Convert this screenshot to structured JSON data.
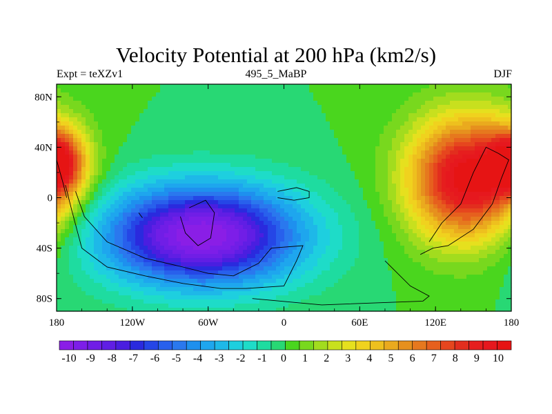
{
  "chart_data": {
    "type": "heatmap",
    "title": "Velocity Potential at 200 hPa (km2/s)",
    "subtitle_left": "Expt = teXZv1",
    "subtitle_center": "495_5_MaBP",
    "subtitle_right": "DJF",
    "x_ticks": [
      {
        "value": -180,
        "label": "180"
      },
      {
        "value": -120,
        "label": "120W"
      },
      {
        "value": -60,
        "label": "60W"
      },
      {
        "value": 0,
        "label": "0"
      },
      {
        "value": 60,
        "label": "60E"
      },
      {
        "value": 120,
        "label": "120E"
      },
      {
        "value": 180,
        "label": "180"
      }
    ],
    "y_ticks": [
      {
        "value": 80,
        "label": "80N"
      },
      {
        "value": 40,
        "label": "40N"
      },
      {
        "value": 0,
        "label": "0"
      },
      {
        "value": -40,
        "label": "40S"
      },
      {
        "value": -80,
        "label": "80S"
      }
    ],
    "xlim": [
      -180,
      180
    ],
    "ylim": [
      -90,
      90
    ],
    "colorbar": {
      "labels": [
        "-10",
        "-9",
        "-8",
        "-7",
        "-6",
        "-5",
        "-4",
        "-3",
        "-2",
        "-1",
        "0",
        "1",
        "2",
        "3",
        "4",
        "5",
        "6",
        "7",
        "8",
        "9",
        "10"
      ],
      "colors": [
        "#8a1ee6",
        "#7d1ee8",
        "#701ee6",
        "#601ee4",
        "#4a1ee0",
        "#2a2ade",
        "#2546e6",
        "#2860ec",
        "#2a78ee",
        "#1e90ee",
        "#1ea6ee",
        "#1eb8e8",
        "#1ecfdf",
        "#1edcc8",
        "#1edca0",
        "#28d874",
        "#4ad61e",
        "#78d81e",
        "#a2dc1e",
        "#c8e01e",
        "#e6e01e",
        "#f0d21e",
        "#eec01e",
        "#eaaa1e",
        "#e6901e",
        "#e6781e",
        "#e6601e",
        "#e6461e",
        "#e22e1e",
        "#e61e1e",
        "#e6181e",
        "#e61414"
      ]
    },
    "field_centers": [
      {
        "lon": -65,
        "lat": -30,
        "amplitude": -11,
        "lon_scale": 55,
        "lat_scale": 28
      },
      {
        "lon": 145,
        "lat": 15,
        "amplitude": 11,
        "lon_scale": 32,
        "lat_scale": 34
      },
      {
        "lon": -178,
        "lat": 28,
        "amplitude": 8,
        "lon_scale": 14,
        "lat_scale": 18
      }
    ]
  }
}
